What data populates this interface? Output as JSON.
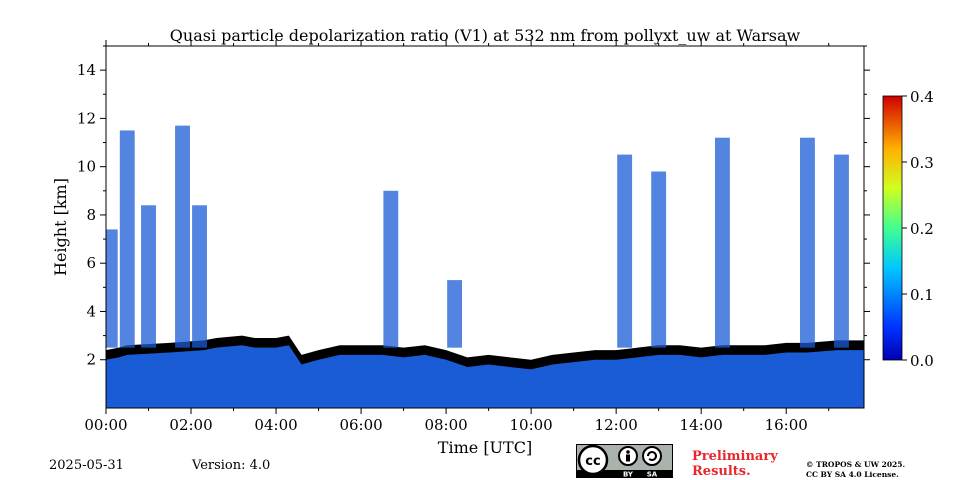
{
  "chart_data": {
    "type": "heatmap",
    "title": "Quasi particle depolarization ratio (V1) at 532 nm from pollyxt_uw at Warsaw",
    "xlabel": "Time [UTC]",
    "ylabel": "Height [km]",
    "xlim": [
      0,
      17.83
    ],
    "ylim": [
      0,
      15
    ],
    "x_ticks": [
      "00:00",
      "02:00",
      "04:00",
      "06:00",
      "08:00",
      "10:00",
      "12:00",
      "14:00",
      "16:00"
    ],
    "x_tick_hours": [
      0,
      2,
      4,
      6,
      8,
      10,
      12,
      14,
      16
    ],
    "y_ticks": [
      "2",
      "4",
      "6",
      "8",
      "10",
      "12",
      "14"
    ],
    "y_tick_values": [
      2,
      4,
      6,
      8,
      10,
      12,
      14
    ],
    "colorbar": {
      "min": 0.0,
      "max": 0.4,
      "ticks": [
        "0.0",
        "0.1",
        "0.2",
        "0.3",
        "0.4"
      ],
      "tick_values": [
        0.0,
        0.1,
        0.2,
        0.3,
        0.4
      ],
      "colormap": "jet"
    },
    "boundary_layer_top_km": [
      [
        0,
        2.4
      ],
      [
        0.3,
        2.5
      ],
      [
        0.5,
        2.6
      ],
      [
        1.5,
        2.7
      ],
      [
        2.3,
        2.8
      ],
      [
        2.6,
        2.9
      ],
      [
        3.2,
        3.0
      ],
      [
        3.5,
        2.9
      ],
      [
        4.0,
        2.9
      ],
      [
        4.3,
        3.0
      ],
      [
        4.6,
        2.2
      ],
      [
        5.0,
        2.4
      ],
      [
        5.5,
        2.6
      ],
      [
        6.0,
        2.6
      ],
      [
        6.5,
        2.6
      ],
      [
        7.0,
        2.5
      ],
      [
        7.5,
        2.6
      ],
      [
        8.0,
        2.4
      ],
      [
        8.5,
        2.1
      ],
      [
        9.0,
        2.2
      ],
      [
        9.5,
        2.1
      ],
      [
        10.0,
        2.0
      ],
      [
        10.5,
        2.2
      ],
      [
        11.0,
        2.3
      ],
      [
        11.5,
        2.4
      ],
      [
        12.0,
        2.4
      ],
      [
        12.5,
        2.5
      ],
      [
        13.0,
        2.6
      ],
      [
        13.5,
        2.6
      ],
      [
        14.0,
        2.5
      ],
      [
        14.5,
        2.6
      ],
      [
        15.0,
        2.6
      ],
      [
        15.5,
        2.6
      ],
      [
        16.0,
        2.7
      ],
      [
        16.5,
        2.7
      ],
      [
        17.2,
        2.8
      ],
      [
        17.83,
        2.8
      ]
    ],
    "cloud_tops_km": [
      [
        0.1,
        7.4
      ],
      [
        0.5,
        11.5
      ],
      [
        1.0,
        8.4
      ],
      [
        1.8,
        11.7
      ],
      [
        2.2,
        8.4
      ],
      [
        6.7,
        9.0
      ],
      [
        8.2,
        5.3
      ],
      [
        12.2,
        10.5
      ],
      [
        13.0,
        9.8
      ],
      [
        14.5,
        11.2
      ],
      [
        16.5,
        11.2
      ],
      [
        17.3,
        10.5
      ]
    ]
  },
  "footer": {
    "date": "2025-05-31",
    "version": "Version: 4.0",
    "preliminary_line1": "Preliminary",
    "preliminary_line2": "Results.",
    "copyright_line1": "© TROPOS & UW 2025.",
    "copyright_line2": "CC BY SA 4.0 License.",
    "cc_badge_by": "BY",
    "cc_badge_sa": "SA"
  },
  "colors": {
    "no_data": "#ffffff",
    "below_threshold": "#000000",
    "low_depol": "#1a5cd6"
  }
}
